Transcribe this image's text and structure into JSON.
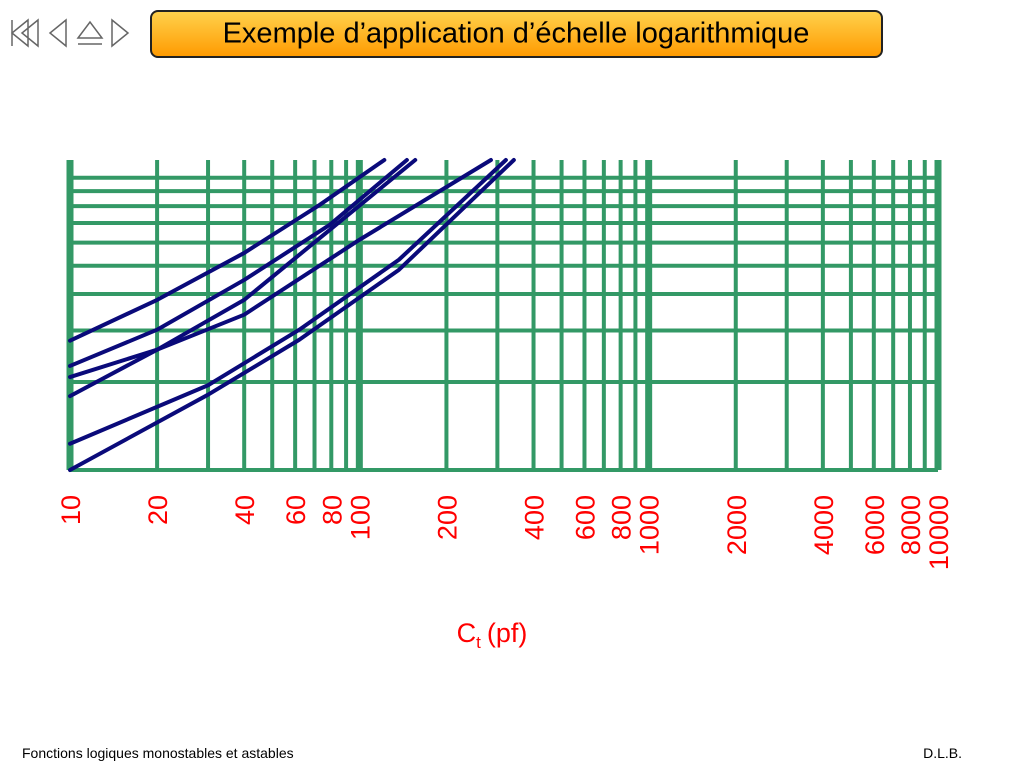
{
  "header": {
    "title": "Exemple d’application d’échelle logarithmique"
  },
  "chart_data": {
    "type": "line",
    "xlabel": [
      "C",
      "t",
      "(pf)"
    ],
    "xscale": "log",
    "yscale": "log",
    "xlim": [
      10,
      10000
    ],
    "ylim": [
      1,
      11.5
    ],
    "xticks": [
      10,
      20,
      40,
      60,
      80,
      100,
      200,
      400,
      600,
      800,
      1000,
      2000,
      4000,
      6000,
      8000,
      10000
    ],
    "xgrid": [
      10,
      20,
      30,
      40,
      50,
      60,
      70,
      80,
      90,
      100,
      200,
      300,
      400,
      500,
      600,
      700,
      800,
      900,
      1000,
      2000,
      3000,
      4000,
      5000,
      6000,
      7000,
      8000,
      9000,
      10000
    ],
    "ygrid": [
      1,
      2,
      3,
      4,
      5,
      6,
      7,
      8,
      9,
      10
    ],
    "grid_color": "#339966",
    "tick_color": "#ff0000",
    "series": [
      {
        "color": "#0a0a7a",
        "x": [
          10,
          20,
          40,
          73,
          122
        ],
        "values": [
          2.77,
          3.82,
          5.53,
          8.08,
          11.5
        ]
      },
      {
        "color": "#0a0a7a",
        "x": [
          10,
          20,
          40,
          79,
          146
        ],
        "values": [
          2.27,
          3.02,
          4.47,
          6.9,
          11.5
        ]
      },
      {
        "color": "#0a0a7a",
        "x": [
          10,
          20,
          40,
          79,
          156
        ],
        "values": [
          2.08,
          2.58,
          3.82,
          6.63,
          11.5
        ]
      },
      {
        "color": "#0a0a7a",
        "x": [
          10,
          20,
          40,
          100,
          285
        ],
        "values": [
          1.79,
          2.58,
          3.4,
          6.13,
          11.5
        ]
      },
      {
        "color": "#0a0a7a",
        "x": [
          10,
          30,
          62,
          137,
          321
        ],
        "values": [
          1.23,
          1.95,
          3.02,
          5.24,
          11.5
        ]
      },
      {
        "color": "#0a0a7a",
        "x": [
          10,
          30,
          62,
          137,
          342
        ],
        "values": [
          1,
          1.81,
          2.79,
          4.84,
          11.5
        ]
      }
    ]
  },
  "footer": {
    "left": "Fonctions logiques monostables et astables",
    "right": "D.L.B."
  }
}
